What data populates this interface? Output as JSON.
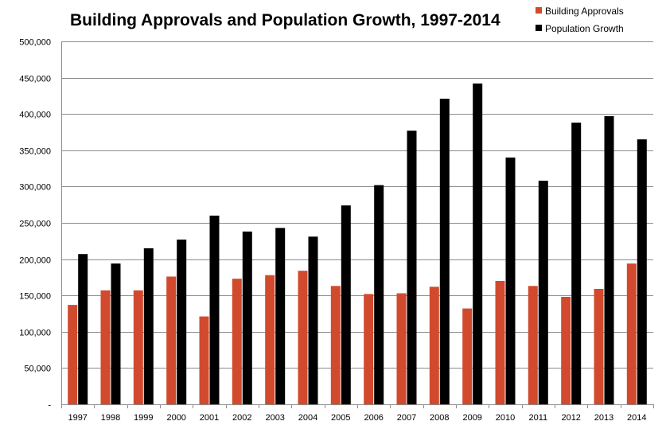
{
  "chart_data": {
    "type": "bar",
    "title": "Building Approvals and Population Growth, 1997-2014",
    "xlabel": "",
    "ylabel": "",
    "ylim": [
      0,
      500000
    ],
    "y_ticks": [
      0,
      50000,
      100000,
      150000,
      200000,
      250000,
      300000,
      350000,
      400000,
      450000,
      500000
    ],
    "y_tick_labels": [
      "-",
      "50,000",
      "100,000",
      "150,000",
      "200,000",
      "250,000",
      "300,000",
      "350,000",
      "400,000",
      "450,000",
      "500,000"
    ],
    "grid": true,
    "legend_position": "top-right",
    "categories": [
      "1997",
      "1998",
      "1999",
      "2000",
      "2001",
      "2002",
      "2003",
      "2004",
      "2005",
      "2006",
      "2007",
      "2008",
      "2009",
      "2010",
      "2011",
      "2012",
      "2013",
      "2014"
    ],
    "series": [
      {
        "name": "Building Approvals",
        "color": "#d24a2e",
        "values": [
          137000,
          157000,
          157000,
          176000,
          121000,
          173000,
          178000,
          184000,
          163000,
          152000,
          153000,
          162000,
          132000,
          170000,
          163000,
          148000,
          159000,
          194000
        ]
      },
      {
        "name": "Population Growth",
        "color": "#000000",
        "values": [
          207000,
          194000,
          215000,
          227000,
          260000,
          238000,
          243000,
          231000,
          274000,
          302000,
          377000,
          421000,
          442000,
          340000,
          308000,
          388000,
          397000,
          365000
        ]
      }
    ]
  }
}
